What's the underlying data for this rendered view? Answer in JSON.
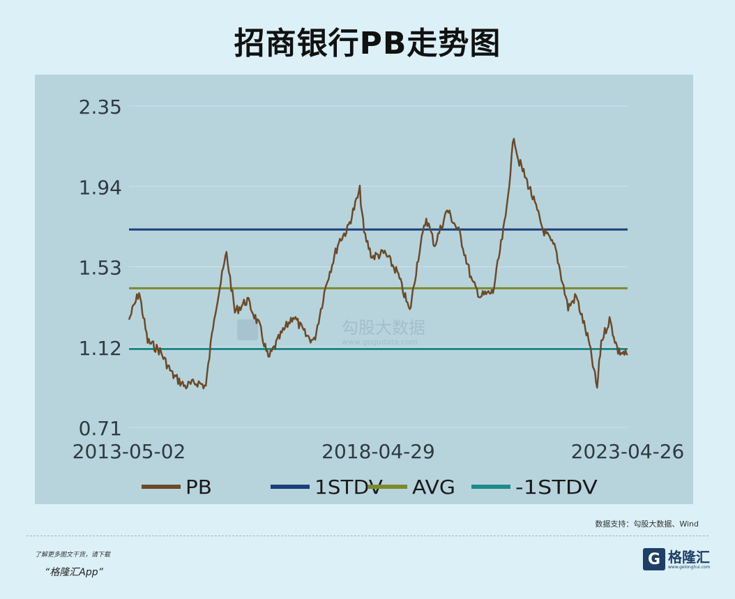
{
  "chart_data": {
    "type": "line",
    "title": "招商银行PB走势图",
    "y_ticks": [
      "2.35",
      "1.94",
      "1.53",
      "1.12",
      "0.71"
    ],
    "ylim": [
      0.71,
      2.35
    ],
    "x_ticks": [
      "2013-05-02",
      "2018-04-29",
      "2023-04-26"
    ],
    "xlim": [
      "2013-05-02",
      "2023-04-26"
    ],
    "grid": "horizontal",
    "legend_position": "bottom",
    "series": [
      {
        "name": "PB",
        "color": "#6b4a28",
        "x": [
          "2013-05-02",
          "2013-07",
          "2013-09",
          "2013-12",
          "2014-03",
          "2014-06",
          "2014-09",
          "2014-11",
          "2015-01",
          "2015-04",
          "2015-06",
          "2015-09",
          "2015-12",
          "2016-02",
          "2016-05",
          "2016-08",
          "2016-11",
          "2017-01",
          "2017-04",
          "2017-07",
          "2017-09",
          "2017-12",
          "2018-01",
          "2018-03",
          "2018-06",
          "2018-09",
          "2018-12",
          "2019-02",
          "2019-04",
          "2019-06",
          "2019-09",
          "2019-12",
          "2020-03",
          "2020-05",
          "2020-08",
          "2020-11",
          "2021-01",
          "2021-02",
          "2021-05",
          "2021-08",
          "2021-11",
          "2022-02",
          "2022-04",
          "2022-07",
          "2022-09",
          "2022-10",
          "2022-12",
          "2023-02",
          "2023-04-26"
        ],
        "values": [
          1.26,
          1.4,
          1.15,
          1.1,
          0.98,
          0.92,
          0.94,
          0.92,
          1.28,
          1.6,
          1.3,
          1.36,
          1.22,
          1.06,
          1.18,
          1.28,
          1.18,
          1.15,
          1.45,
          1.66,
          1.72,
          1.92,
          1.7,
          1.58,
          1.6,
          1.5,
          1.3,
          1.58,
          1.78,
          1.64,
          1.82,
          1.7,
          1.45,
          1.38,
          1.4,
          1.78,
          2.2,
          2.08,
          1.92,
          1.72,
          1.62,
          1.32,
          1.38,
          1.15,
          0.91,
          1.15,
          1.26,
          1.1,
          1.08
        ]
      },
      {
        "name": "1STDV",
        "color": "#1b3f7a",
        "values": [
          1.72
        ]
      },
      {
        "name": "AVG",
        "color": "#7d8a2c",
        "values": [
          1.42
        ]
      },
      {
        "name": "-1STDV",
        "color": "#1e8a8a",
        "values": [
          1.11
        ]
      }
    ]
  },
  "watermark": {
    "brand": "勾股大数据",
    "url": "www.gogudata.com"
  },
  "source_text": "数据支持：勾股大数据、Wind",
  "promo_line1": "了解更多图文干货，请下载",
  "promo_line2": "“格隆汇App”",
  "logo": {
    "mark": "G",
    "name": "格隆汇",
    "url": "www.gelonghui.com"
  }
}
